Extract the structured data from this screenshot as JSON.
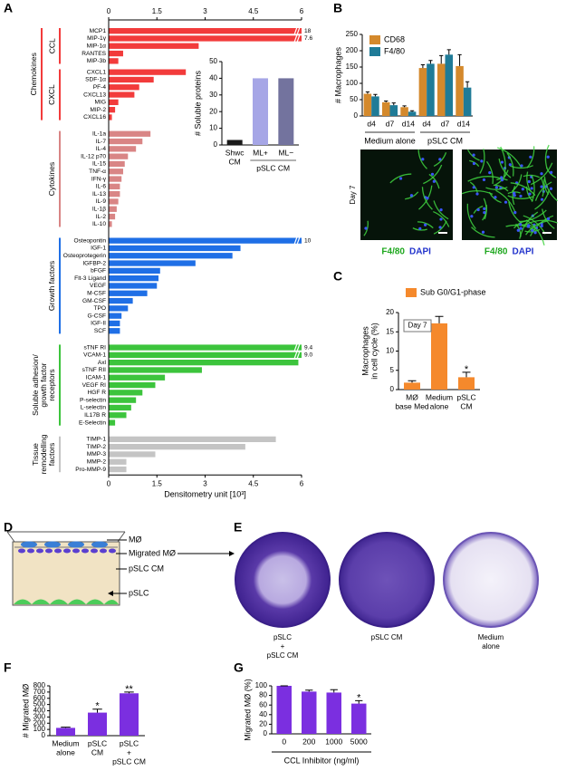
{
  "panel_letters": [
    "A",
    "B",
    "C",
    "D",
    "E",
    "F",
    "G"
  ],
  "chart_data": [
    {
      "type": "bar",
      "horizontal": true,
      "xlim": [
        0,
        6
      ],
      "xticks": [
        0,
        1.5,
        3,
        4.5,
        6
      ],
      "xlabel": "Densitometry unit [10³]",
      "groups": [
        {
          "label": [
            "Chemokines"
          ],
          "color": "#f23b3b",
          "subgroups": [
            {
              "label": "CCL",
              "categories": [
                "MCP1",
                "MIP-1γ",
                "MIP-1α",
                "RANTES",
                "MIP-3b"
              ],
              "values": [
                18,
                7.6,
                2.8,
                0.45,
                0.3
              ],
              "value_labels": [
                "18",
                "7.6",
                null,
                null,
                null
              ]
            },
            {
              "label": "CXCL",
              "categories": [
                "CXCL1",
                "SDF-1α",
                "PF-4",
                "CXCL13",
                "MIG",
                "MIP-2",
                "CXCL16"
              ],
              "values": [
                2.4,
                1.4,
                0.95,
                0.8,
                0.3,
                0.2,
                0.1
              ]
            }
          ]
        },
        {
          "label": [
            "Cytokines"
          ],
          "color": "#d98585",
          "subgroups": [
            {
              "categories": [
                "IL-1a",
                "IL-7",
                "IL-4",
                "IL-12 p70",
                "IL-15",
                "TNF-α",
                "IFN-γ",
                "IL-6",
                "IL-13",
                "IL-9",
                "IL-1β",
                "IL-2",
                "IL-10"
              ],
              "values": [
                1.3,
                1.05,
                0.85,
                0.6,
                0.5,
                0.45,
                0.4,
                0.35,
                0.35,
                0.3,
                0.25,
                0.2,
                0.1
              ]
            }
          ]
        },
        {
          "label": [
            "Growth factors"
          ],
          "color": "#1f6fe6",
          "subgroups": [
            {
              "categories": [
                "Osteopontin",
                "IGF-1",
                "Osteoprotegerin",
                "IGFBP-2",
                "bFGF",
                "Flt-3 Ligand",
                "VEGF",
                "M-CSF",
                "GM-CSF",
                "TPO",
                "G-CSF",
                "IGF-II",
                "SCF"
              ],
              "values": [
                10,
                4.1,
                3.85,
                2.7,
                1.6,
                1.55,
                1.5,
                1.2,
                0.75,
                0.6,
                0.4,
                0.35,
                0.35
              ],
              "value_labels": [
                "10",
                null,
                null,
                null,
                null,
                null,
                null,
                null,
                null,
                null,
                null,
                null,
                null
              ]
            }
          ]
        },
        {
          "label": [
            "Soluble adhesion/",
            "growth factor",
            "receptors"
          ],
          "color": "#3cc43c",
          "subgroups": [
            {
              "categories": [
                "sTNF RI",
                "VCAM-1",
                "Axl",
                "sTNF RII",
                "ICAM-1",
                "VEGF RI",
                "HGF R",
                "P-selectin",
                "L-selectin",
                "IL17B R",
                "E-Selectin"
              ],
              "values": [
                9.4,
                9.0,
                5.9,
                2.9,
                1.75,
                1.45,
                1.05,
                0.85,
                0.7,
                0.55,
                0.2
              ],
              "value_labels": [
                "9.4",
                "9.0",
                null,
                null,
                null,
                null,
                null,
                null,
                null,
                null,
                null
              ]
            }
          ]
        },
        {
          "label": [
            "Tissue",
            "remodelling",
            "factors"
          ],
          "color": "#c4c4c4",
          "subgroups": [
            {
              "categories": [
                "TIMP-1",
                "TIMP-2",
                "MMP-3",
                "MMP-2",
                "Pro-MMP-9"
              ],
              "values": [
                5.2,
                4.25,
                1.45,
                0.55,
                0.55
              ]
            }
          ]
        }
      ]
    },
    {
      "type": "bar",
      "ylabel": "# Soluble proteins",
      "ylim": [
        0,
        50
      ],
      "yticks": [
        0,
        10,
        20,
        30,
        40,
        50
      ],
      "categories": [
        [
          "Shwc",
          "CM"
        ],
        "ML+",
        "ML−"
      ],
      "group_label": "pSLC CM",
      "series": [
        {
          "values": [
            3,
            40,
            40
          ],
          "colors": [
            "#1a1a1a",
            "#a6a6e6",
            "#73739e"
          ]
        }
      ]
    },
    {
      "type": "bar",
      "ylabel": "# Macrophages",
      "ylim": [
        0,
        250
      ],
      "yticks": [
        0,
        50,
        100,
        150,
        200,
        250
      ],
      "categories": [
        "d4",
        "d7",
        "d14",
        "d4",
        "d7",
        "d14"
      ],
      "category_groups": [
        "Medium alone",
        "pSLC CM"
      ],
      "legend": "top-left",
      "series": [
        {
          "name": "CD68",
          "color": "#d4892c",
          "values": [
            68,
            42,
            27,
            147,
            160,
            153
          ],
          "errors": [
            6,
            4,
            4,
            10,
            25,
            35
          ]
        },
        {
          "name": "F4/80",
          "color": "#1f7b97",
          "values": [
            60,
            33,
            13,
            160,
            188,
            87
          ],
          "errors": [
            6,
            7,
            3,
            10,
            15,
            18
          ]
        }
      ]
    },
    {
      "type": "bar",
      "ylabel": [
        "Macrophages",
        "in cell cycle (%)"
      ],
      "ylim": [
        0,
        20
      ],
      "yticks": [
        0,
        5,
        10,
        15,
        20
      ],
      "categories": [
        [
          "MØ",
          "base Med"
        ],
        [
          "Medium",
          "alone"
        ],
        [
          "pSLC",
          "CM"
        ]
      ],
      "annotation_box": "Day 7",
      "annotations": [
        null,
        null,
        "*"
      ],
      "legend": "top",
      "series": [
        {
          "name": "Sub G0/G1-phase",
          "color": "#f5892c",
          "values": [
            1.8,
            17.2,
            3.2
          ],
          "errors": [
            0.5,
            1.8,
            1.3
          ]
        }
      ]
    },
    {
      "type": "bar",
      "ylabel": "# Migrated MØ",
      "ylim": [
        0,
        800
      ],
      "yticks": [
        0,
        100,
        200,
        300,
        400,
        500,
        600,
        700,
        800
      ],
      "categories": [
        [
          "Medium",
          "alone"
        ],
        [
          "pSLC",
          "CM"
        ],
        [
          "pSLC",
          "+",
          "pSLC CM"
        ]
      ],
      "annotations": [
        null,
        "*",
        "**"
      ],
      "series": [
        {
          "color": "#7b2fe0",
          "values": [
            125,
            370,
            680
          ],
          "errors": [
            12,
            55,
            20
          ]
        }
      ]
    },
    {
      "type": "bar",
      "ylabel": "Migrated MØ (%)",
      "xlabel": "CCL Inhibitor (ng/ml)",
      "ylim": [
        0,
        100
      ],
      "yticks": [
        0,
        20,
        40,
        60,
        80,
        100
      ],
      "categories": [
        "0",
        "200",
        "1000",
        "5000"
      ],
      "annotations": [
        null,
        null,
        null,
        "*"
      ],
      "series": [
        {
          "color": "#7b2fe0",
          "values": [
            100,
            88,
            86,
            63
          ],
          "errors": [
            0,
            3,
            6,
            6
          ]
        }
      ]
    }
  ],
  "micrographs": {
    "row_label": "Day 7",
    "captions": [
      [
        "F4/80",
        "DAPI"
      ],
      [
        "F4/80",
        "DAPI"
      ]
    ]
  },
  "diagram": {
    "labels": [
      "MØ",
      "Migrated MØ",
      "pSLC CM",
      "pSLC"
    ]
  },
  "wells": {
    "captions": [
      [
        "pSLC",
        "+",
        "pSLC CM"
      ],
      [
        "pSLC CM"
      ],
      [
        "Medium",
        "alone"
      ]
    ]
  }
}
